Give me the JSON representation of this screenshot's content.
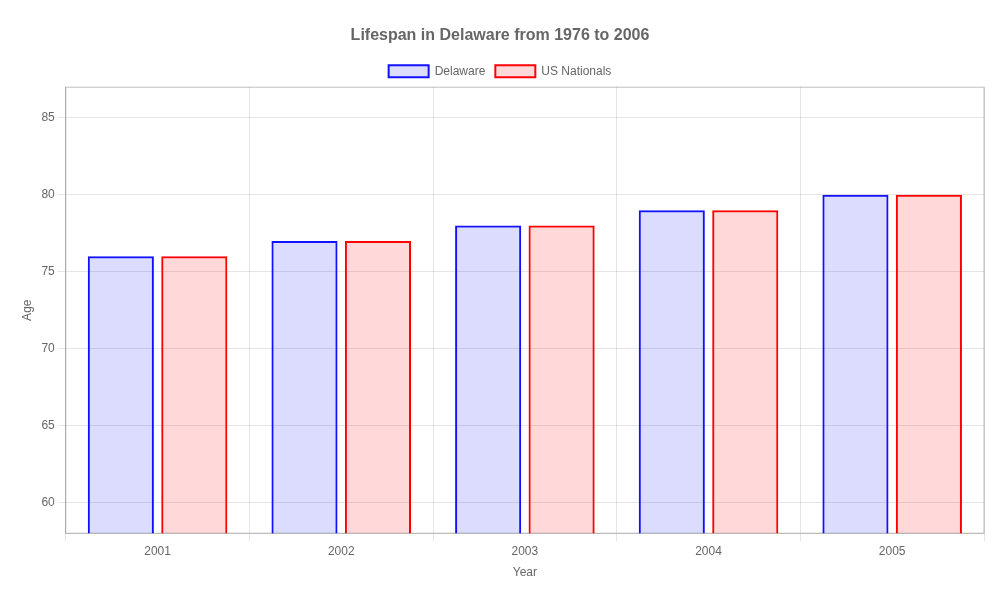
{
  "chart_data": {
    "type": "bar",
    "title": "Lifespan in Delaware from 1976 to 2006",
    "xlabel": "Year",
    "ylabel": "Age",
    "categories": [
      "2001",
      "2002",
      "2003",
      "2004",
      "2005"
    ],
    "series": [
      {
        "name": "Delaware",
        "color": "#1111ff",
        "values": [
          76,
          77,
          78,
          79,
          80
        ]
      },
      {
        "name": "US Nationals",
        "color": "#ff0000",
        "values": [
          76,
          77,
          78,
          79,
          80
        ]
      }
    ],
    "ylim": [
      58,
      87
    ],
    "yticks": [
      60,
      65,
      70,
      75,
      80,
      85
    ],
    "grid": true,
    "legend": "top"
  }
}
